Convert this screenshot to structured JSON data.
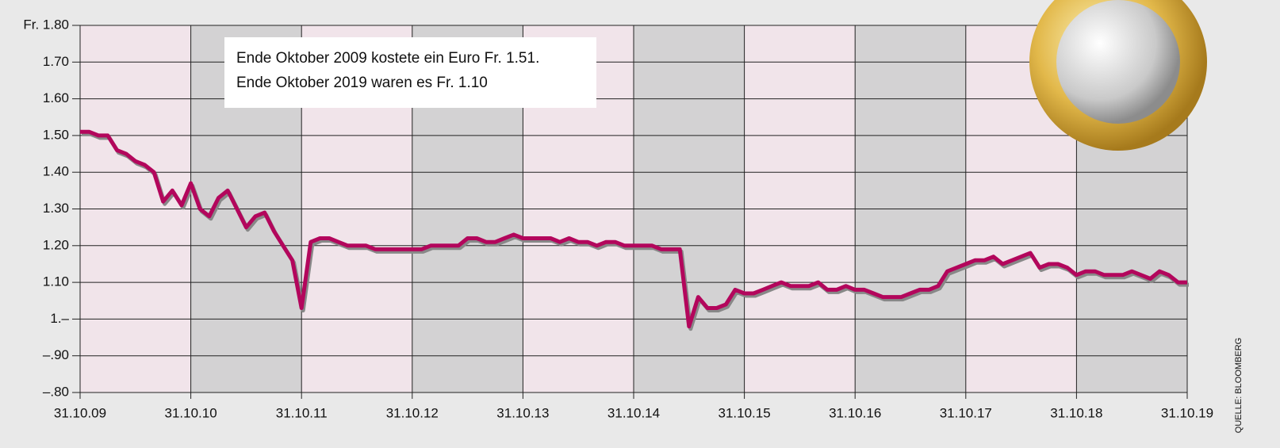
{
  "chart_data": {
    "type": "line",
    "annotation": [
      "Ende Oktober 2009 kostete ein Euro Fr. 1.51.",
      "Ende Oktober 2019 waren es Fr. 1.10"
    ],
    "source": "QUELLE: BLOOMBERG",
    "categories": [
      "31.10.09",
      null,
      null,
      null,
      null,
      null,
      null,
      null,
      null,
      null,
      null,
      null,
      "31.10.10",
      null,
      null,
      null,
      null,
      null,
      null,
      null,
      null,
      null,
      null,
      null,
      "31.10.11",
      null,
      null,
      null,
      null,
      null,
      null,
      null,
      null,
      null,
      null,
      null,
      "31.10.12",
      null,
      null,
      null,
      null,
      null,
      null,
      null,
      null,
      null,
      null,
      null,
      "31.10.13",
      null,
      null,
      null,
      null,
      null,
      null,
      null,
      null,
      null,
      null,
      null,
      "31.10.14",
      null,
      null,
      null,
      null,
      null,
      null,
      null,
      null,
      null,
      null,
      null,
      "31.10.15",
      null,
      null,
      null,
      null,
      null,
      null,
      null,
      null,
      null,
      null,
      null,
      "31.10.16",
      null,
      null,
      null,
      null,
      null,
      null,
      null,
      null,
      null,
      null,
      null,
      "31.10.17",
      null,
      null,
      null,
      null,
      null,
      null,
      null,
      null,
      null,
      null,
      null,
      "31.10.18",
      null,
      null,
      null,
      null,
      null,
      null,
      null,
      null,
      null,
      null,
      null,
      "31.10.19"
    ],
    "values": [
      1.51,
      1.51,
      1.5,
      1.5,
      1.46,
      1.45,
      1.43,
      1.42,
      1.4,
      1.32,
      1.35,
      1.31,
      1.37,
      1.3,
      1.28,
      1.33,
      1.35,
      1.3,
      1.25,
      1.28,
      1.29,
      1.24,
      1.2,
      1.16,
      1.03,
      1.21,
      1.22,
      1.22,
      1.21,
      1.2,
      1.2,
      1.2,
      1.19,
      1.19,
      1.19,
      1.19,
      1.19,
      1.19,
      1.2,
      1.2,
      1.2,
      1.2,
      1.22,
      1.22,
      1.21,
      1.21,
      1.22,
      1.23,
      1.22,
      1.22,
      1.22,
      1.22,
      1.21,
      1.22,
      1.21,
      1.21,
      1.2,
      1.21,
      1.21,
      1.2,
      1.2,
      1.2,
      1.2,
      1.19,
      1.19,
      1.19,
      0.98,
      1.06,
      1.03,
      1.03,
      1.04,
      1.08,
      1.07,
      1.07,
      1.08,
      1.09,
      1.1,
      1.09,
      1.09,
      1.09,
      1.1,
      1.08,
      1.08,
      1.09,
      1.08,
      1.08,
      1.07,
      1.06,
      1.06,
      1.06,
      1.07,
      1.08,
      1.08,
      1.09,
      1.13,
      1.14,
      1.15,
      1.16,
      1.16,
      1.17,
      1.15,
      1.16,
      1.17,
      1.18,
      1.14,
      1.15,
      1.15,
      1.14,
      1.12,
      1.13,
      1.13,
      1.12,
      1.12,
      1.12,
      1.13,
      1.12,
      1.11,
      1.13,
      1.12,
      1.1,
      1.1
    ],
    "color": "#b3065c",
    "band_colors": [
      "#f1e4ea",
      "#d3d2d3"
    ],
    "ylim": [
      0.8,
      1.8
    ],
    "yticks": [
      {
        "value": 0.8,
        "label": "–.80"
      },
      {
        "value": 0.9,
        "label": "–.90"
      },
      {
        "value": 1.0,
        "label": "1.–"
      },
      {
        "value": 1.1,
        "label": "1.10"
      },
      {
        "value": 1.2,
        "label": "1.20"
      },
      {
        "value": 1.3,
        "label": "1.30"
      },
      {
        "value": 1.4,
        "label": "1.40"
      },
      {
        "value": 1.5,
        "label": "1.50"
      },
      {
        "value": 1.6,
        "label": "1.60"
      },
      {
        "value": 1.7,
        "label": "1.70"
      },
      {
        "value": 1.8,
        "label": "Fr. 1.80"
      }
    ],
    "grid": true
  }
}
